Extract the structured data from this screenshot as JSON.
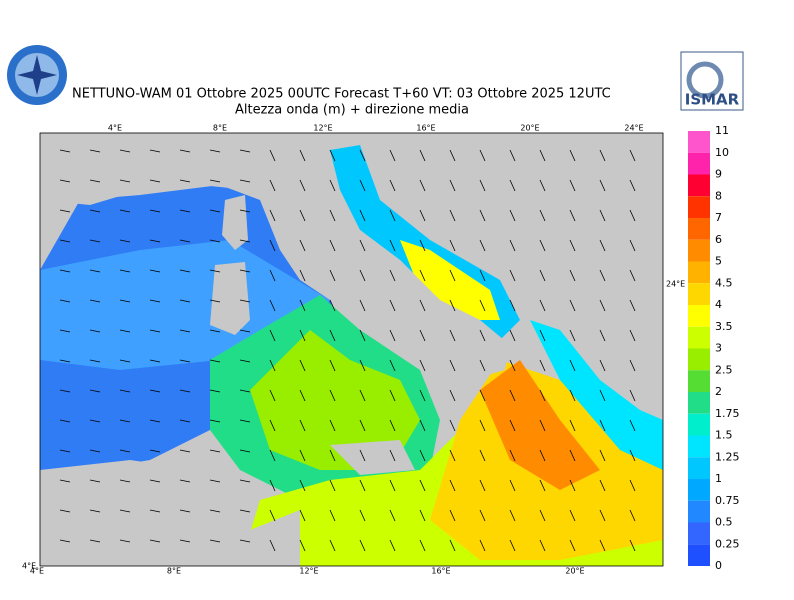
{
  "header": {
    "title": "NETTUNO-WAM  01  Ottobre  2025 00UTC Forecast T+60 VT: 03  Ottobre  2025 12UTC",
    "subtitle": "Altezza onda (m) + direzione media",
    "logo_text": "ISMAR"
  },
  "map": {
    "top_labels": [
      "4°E",
      "8°E",
      "12°E",
      "16°E",
      "20°E",
      "24°E"
    ],
    "bottom_labels": [
      "4°E",
      "8°E",
      "12°E",
      "16°E",
      "20°E"
    ],
    "corner_label": "4°E",
    "right_label": "24°E"
  },
  "legend": {
    "labels": [
      "11",
      "10",
      "9",
      "8",
      "7",
      "6",
      "5",
      "4.5",
      "4",
      "3.5",
      "3",
      "2.5",
      "2",
      "1.75",
      "1.5",
      "1.25",
      "1",
      "0.75",
      "0.5",
      "0.25",
      "0"
    ],
    "colors": [
      "#ff55cc",
      "#ff22aa",
      "#ff0033",
      "#ff3300",
      "#ff6600",
      "#ff8c00",
      "#ffb300",
      "#ffd700",
      "#ffff00",
      "#ccff00",
      "#99ee00",
      "#55dd33",
      "#22dd88",
      "#00eecc",
      "#00e5ff",
      "#00c8ff",
      "#00a8ff",
      "#2288ff",
      "#3366ff",
      "#1e50ff"
    ]
  }
}
